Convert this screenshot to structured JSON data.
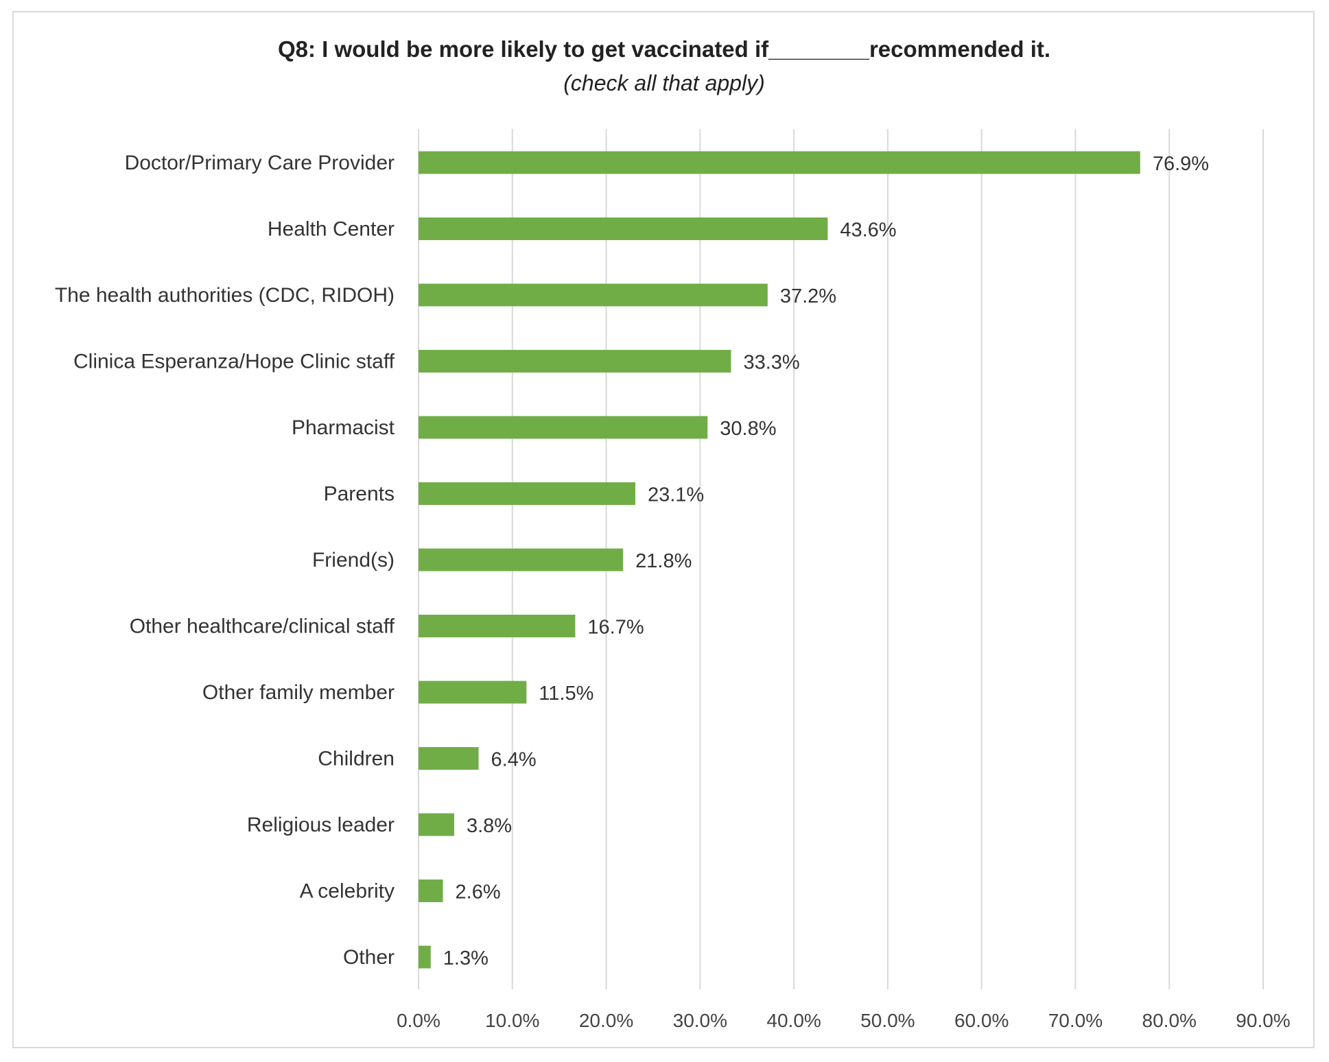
{
  "chart_data": {
    "type": "bar",
    "orientation": "horizontal",
    "title": "Q8: I would be more likely to get vaccinated if________recommended it.",
    "subtitle": "(check all that apply)",
    "xlabel": "",
    "ylabel": "",
    "xlim": [
      0,
      90
    ],
    "x_ticks": [
      "0.0%",
      "10.0%",
      "20.0%",
      "30.0%",
      "40.0%",
      "50.0%",
      "60.0%",
      "70.0%",
      "80.0%",
      "90.0%"
    ],
    "grid": "vertical",
    "legend": "none",
    "bar_color": "#70ad47",
    "categories": [
      "Doctor/Primary Care Provider",
      "Health Center",
      "The health authorities (CDC, RIDOH)",
      "Clinica Esperanza/Hope Clinic staff",
      "Pharmacist",
      "Parents",
      "Friend(s)",
      "Other healthcare/clinical staff",
      "Other family member",
      "Children",
      "Religious leader",
      "A celebrity",
      "Other"
    ],
    "values": [
      76.9,
      43.6,
      37.2,
      33.3,
      30.8,
      23.1,
      21.8,
      16.7,
      11.5,
      6.4,
      3.8,
      2.6,
      1.3
    ],
    "value_labels": [
      "76.9%",
      "43.6%",
      "37.2%",
      "33.3%",
      "30.8%",
      "23.1%",
      "21.8%",
      "16.7%",
      "11.5%",
      "6.4%",
      "3.8%",
      "2.6%",
      "1.3%"
    ]
  }
}
